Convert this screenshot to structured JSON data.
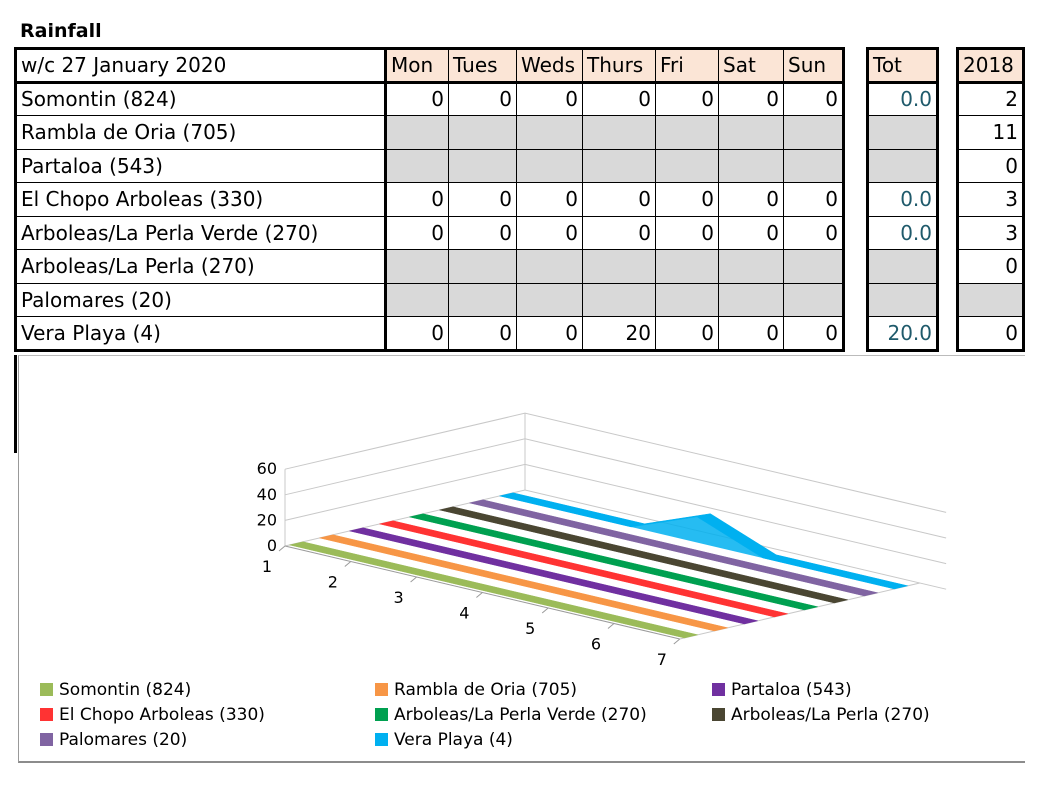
{
  "title": "Rainfall",
  "table": {
    "header": [
      "w/c 27 January 2020",
      "Mon",
      "Tues",
      "Weds",
      "Thurs",
      "Fri",
      "Sat",
      "Sun"
    ],
    "tot_header": "Tot",
    "year_header": "2018",
    "rows": [
      {
        "station": "Somontin (824)",
        "values": [
          "0",
          "0",
          "0",
          "0",
          "0",
          "0",
          "0"
        ],
        "tot": "0.0",
        "year": "2"
      },
      {
        "station": "Rambla de Oria (705)",
        "values": [
          "",
          "",
          "",
          "",
          "",
          "",
          ""
        ],
        "tot": "",
        "year": "11"
      },
      {
        "station": "Partaloa (543)",
        "values": [
          "",
          "",
          "",
          "",
          "",
          "",
          ""
        ],
        "tot": "",
        "year": "0"
      },
      {
        "station": "El Chopo Arboleas (330)",
        "values": [
          "0",
          "0",
          "0",
          "0",
          "0",
          "0",
          "0"
        ],
        "tot": "0.0",
        "year": "3"
      },
      {
        "station": "Arboleas/La Perla Verde (270)",
        "values": [
          "0",
          "0",
          "0",
          "0",
          "0",
          "0",
          "0"
        ],
        "tot": "0.0",
        "year": "3"
      },
      {
        "station": "Arboleas/La Perla (270)",
        "values": [
          "",
          "",
          "",
          "",
          "",
          "",
          ""
        ],
        "tot": "",
        "year": "0"
      },
      {
        "station": "Palomares (20)",
        "values": [
          "",
          "",
          "",
          "",
          "",
          "",
          ""
        ],
        "tot": "",
        "year": ""
      },
      {
        "station": "Vera Playa (4)",
        "values": [
          "0",
          "0",
          "0",
          "20",
          "0",
          "0",
          "0"
        ],
        "tot": "20.0",
        "year": "0"
      }
    ]
  },
  "chart_data": {
    "type": "area",
    "subtype": "3d-area",
    "categories": [
      "1",
      "2",
      "3",
      "4",
      "5",
      "6",
      "7"
    ],
    "yticks": [
      "0",
      "20",
      "40",
      "60"
    ],
    "ylim": [
      0,
      60
    ],
    "legend_position": "bottom",
    "series": [
      {
        "name": "Somontin (824)",
        "values": [
          0,
          0,
          0,
          0,
          0,
          0,
          0
        ],
        "color": "#9bbb59"
      },
      {
        "name": "Rambla de Oria (705)",
        "values": [
          0,
          0,
          0,
          0,
          0,
          0,
          0
        ],
        "color": "#f79646"
      },
      {
        "name": "Partaloa (543)",
        "values": [
          0,
          0,
          0,
          0,
          0,
          0,
          0
        ],
        "color": "#7030a0"
      },
      {
        "name": "El Chopo Arboleas (330)",
        "values": [
          0,
          0,
          0,
          0,
          0,
          0,
          0
        ],
        "color": "#ff3333"
      },
      {
        "name": "Arboleas/La Perla Verde (270)",
        "values": [
          0,
          0,
          0,
          0,
          0,
          0,
          0
        ],
        "color": "#00a050"
      },
      {
        "name": "Arboleas/La Perla (270)",
        "values": [
          0,
          0,
          0,
          0,
          0,
          0,
          0
        ],
        "color": "#4a4632"
      },
      {
        "name": "Palomares (20)",
        "values": [
          0,
          0,
          0,
          0,
          0,
          0,
          0
        ],
        "color": "#8064a2"
      },
      {
        "name": "Vera Playa (4)",
        "values": [
          0,
          0,
          0,
          20,
          0,
          0,
          0
        ],
        "color": "#00b0f0"
      }
    ]
  }
}
